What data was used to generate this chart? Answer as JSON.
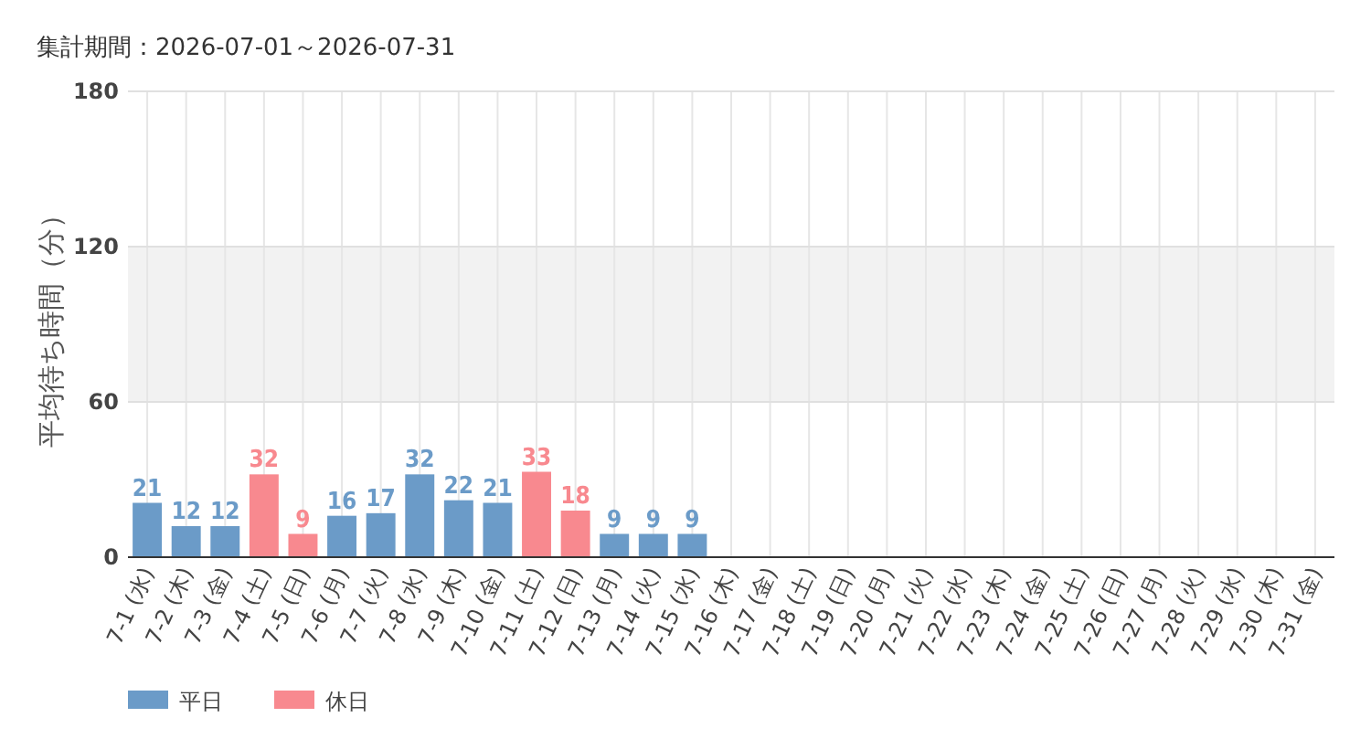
{
  "chart_data": {
    "type": "bar",
    "title": "集計期間：2026-07-01～2026-07-31",
    "ylabel": "平均待ち時間（分）",
    "categories": [
      "7-1 (水)",
      "7-2 (木)",
      "7-3 (金)",
      "7-4 (土)",
      "7-5 (日)",
      "7-6 (月)",
      "7-7 (火)",
      "7-8 (水)",
      "7-9 (木)",
      "7-10 (金)",
      "7-11 (土)",
      "7-12 (日)",
      "7-13 (月)",
      "7-14 (火)",
      "7-15 (水)",
      "7-16 (木)",
      "7-17 (金)",
      "7-18 (土)",
      "7-19 (日)",
      "7-20 (月)",
      "7-21 (火)",
      "7-22 (水)",
      "7-23 (木)",
      "7-24 (金)",
      "7-25 (土)",
      "7-26 (日)",
      "7-27 (月)",
      "7-28 (火)",
      "7-29 (水)",
      "7-30 (木)",
      "7-31 (金)"
    ],
    "series": [
      {
        "name": "平日",
        "color": "#6b9bc8",
        "values": [
          21,
          12,
          12,
          null,
          null,
          16,
          17,
          32,
          22,
          21,
          null,
          null,
          9,
          9,
          9,
          null,
          null,
          null,
          null,
          null,
          null,
          null,
          null,
          null,
          null,
          null,
          null,
          null,
          null,
          null,
          null
        ]
      },
      {
        "name": "休日",
        "color": "#f8898f",
        "values": [
          null,
          null,
          null,
          32,
          9,
          null,
          null,
          null,
          null,
          null,
          33,
          18,
          null,
          null,
          null,
          null,
          null,
          null,
          null,
          null,
          null,
          null,
          null,
          null,
          null,
          null,
          null,
          null,
          null,
          null,
          null
        ]
      }
    ],
    "ylim": [
      0,
      180
    ],
    "yticks": [
      0,
      60,
      120,
      180
    ],
    "grid": true,
    "legend": "bottom left",
    "data_labels": true,
    "bands": [
      {
        "axis": "y",
        "from": 60,
        "to": 120,
        "color": "#f2f2f2"
      }
    ]
  }
}
